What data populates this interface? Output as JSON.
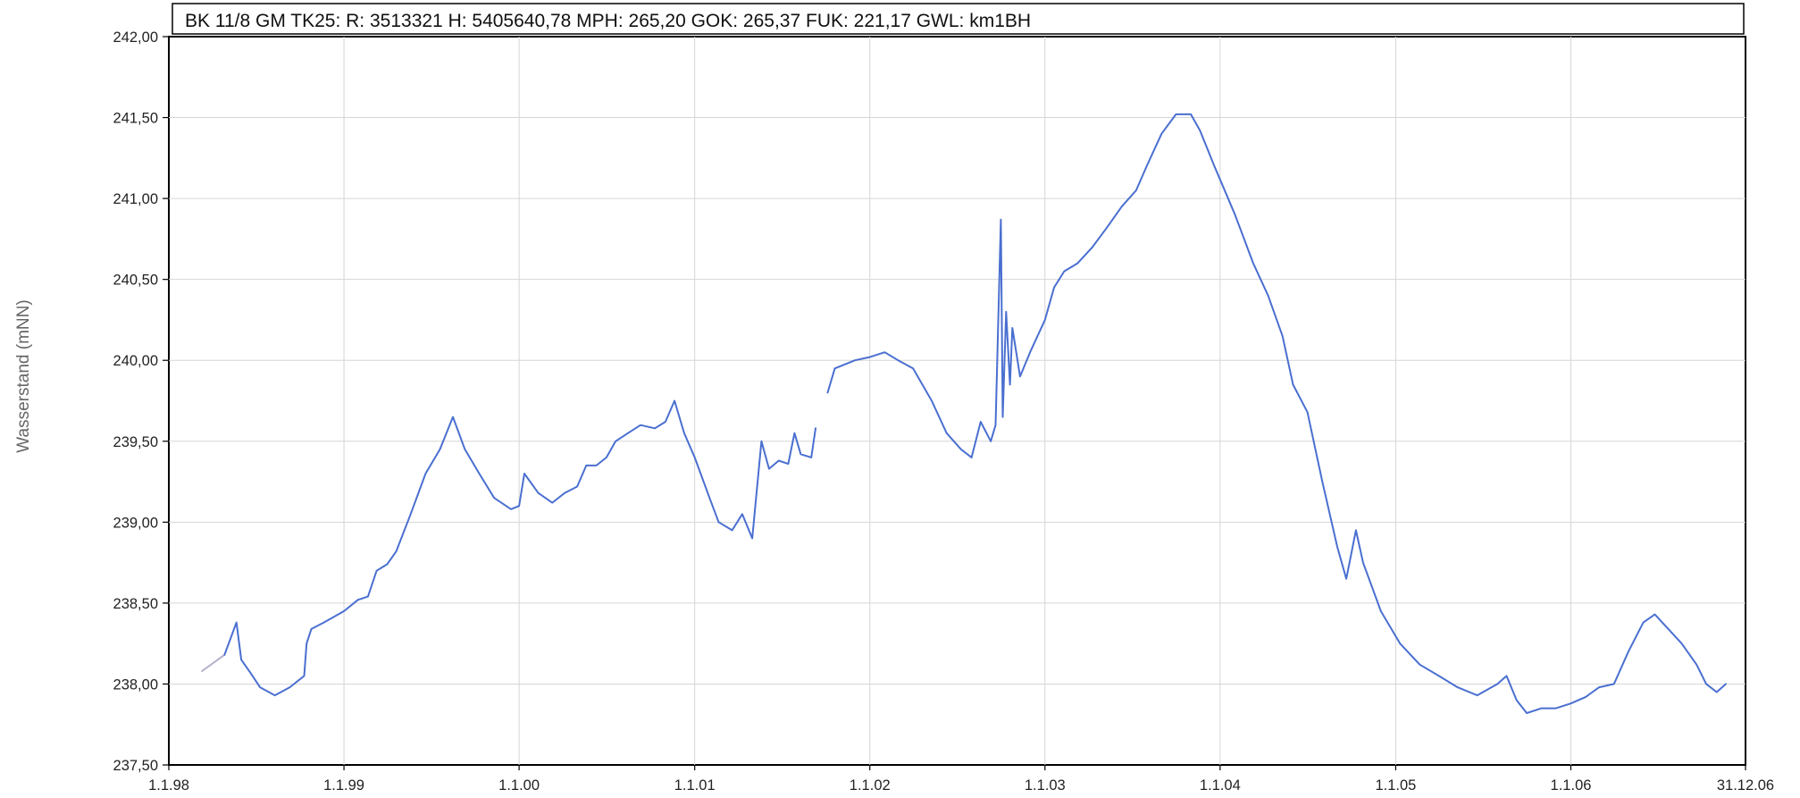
{
  "chart_data": {
    "type": "line",
    "title": "BK 11/8 GM  TK25:   R: 3513321  H: 5405640,78  MPH: 265,20  GOK: 265,37  FUK: 221,17  GWL: km1BH",
    "xlabel": "",
    "ylabel": "Wasserstand (mNN)",
    "x_tick_labels": [
      "1.1.98",
      "1.1.99",
      "1.1.00",
      "1.1.01",
      "1.1.02",
      "1.1.03",
      "1.1.04",
      "1.1.05",
      "1.1.06",
      "31.12.06"
    ],
    "y_tick_labels": [
      "237,50",
      "238,00",
      "238,50",
      "239,00",
      "239,50",
      "240,00",
      "240,50",
      "241,00",
      "241,50",
      "242,00"
    ],
    "xlim": [
      "1998-01-01",
      "2006-12-31"
    ],
    "ylim": [
      237.5,
      242.0
    ],
    "grid": true,
    "legend": "none",
    "colors": {
      "series": "#4a6fd0",
      "start_segment": "#b0b0c8",
      "grid": "#d6d6d6",
      "frame": "#000000"
    },
    "series": [
      {
        "segments": [
          [
            [
              "1998-03-11",
              238.08
            ],
            [
              "1998-04-27",
              238.18
            ]
          ],
          [
            [
              "1998-04-27",
              238.18
            ],
            [
              "1998-05-22",
              238.38
            ],
            [
              "1998-06-01",
              238.15
            ],
            [
              "1998-06-20",
              238.07
            ],
            [
              "1998-07-10",
              237.98
            ],
            [
              "1998-08-10",
              237.93
            ],
            [
              "1998-09-10",
              237.98
            ],
            [
              "1998-10-10",
              238.05
            ],
            [
              "1998-10-15",
              238.25
            ],
            [
              "1998-10-25",
              238.34
            ],
            [
              "1998-11-20",
              238.38
            ],
            [
              "1999-01-01",
              238.45
            ],
            [
              "1999-01-30",
              238.52
            ],
            [
              "1999-02-20",
              238.54
            ],
            [
              "1999-03-10",
              238.7
            ],
            [
              "1999-04-01",
              238.74
            ],
            [
              "1999-04-20",
              238.82
            ],
            [
              "1999-05-20",
              239.05
            ],
            [
              "1999-06-20",
              239.3
            ],
            [
              "1999-07-20",
              239.45
            ],
            [
              "1999-08-16",
              239.65
            ],
            [
              "1999-09-10",
              239.45
            ],
            [
              "1999-10-10",
              239.3
            ],
            [
              "1999-11-10",
              239.15
            ],
            [
              "1999-12-15",
              239.08
            ],
            [
              "2000-01-01",
              239.1
            ],
            [
              "2000-01-12",
              239.3
            ],
            [
              "2000-02-10",
              239.18
            ],
            [
              "2000-03-10",
              239.12
            ],
            [
              "2000-04-05",
              239.18
            ],
            [
              "2000-05-01",
              239.22
            ],
            [
              "2000-05-20",
              239.35
            ],
            [
              "2000-06-10",
              239.35
            ],
            [
              "2000-07-01",
              239.4
            ],
            [
              "2000-07-20",
              239.5
            ],
            [
              "2000-08-15",
              239.55
            ],
            [
              "2000-09-10",
              239.6
            ],
            [
              "2000-10-10",
              239.58
            ],
            [
              "2000-11-01",
              239.62
            ],
            [
              "2000-11-20",
              239.75
            ],
            [
              "2000-12-10",
              239.55
            ],
            [
              "2001-01-01",
              239.4
            ],
            [
              "2001-02-01",
              239.15
            ],
            [
              "2001-02-20",
              239.0
            ],
            [
              "2001-03-20",
              238.95
            ],
            [
              "2001-04-10",
              239.05
            ],
            [
              "2001-05-01",
              238.9
            ],
            [
              "2001-05-20",
              239.5
            ],
            [
              "2001-06-05",
              239.33
            ],
            [
              "2001-06-25",
              239.38
            ],
            [
              "2001-07-15",
              239.36
            ],
            [
              "2001-07-28",
              239.55
            ],
            [
              "2001-08-10",
              239.42
            ],
            [
              "2001-09-01",
              239.4
            ],
            [
              "2001-09-10",
              239.58
            ]
          ],
          [
            [
              "2001-10-05",
              239.8
            ],
            [
              "2001-10-20",
              239.95
            ],
            [
              "2001-12-01",
              240.0
            ],
            [
              "2002-01-01",
              240.02
            ],
            [
              "2002-02-01",
              240.05
            ],
            [
              "2002-03-01",
              240.0
            ],
            [
              "2002-04-01",
              239.95
            ],
            [
              "2002-05-10",
              239.75
            ],
            [
              "2002-06-10",
              239.55
            ],
            [
              "2002-07-10",
              239.45
            ],
            [
              "2002-08-01",
              239.4
            ],
            [
              "2002-08-20",
              239.62
            ],
            [
              "2002-09-10",
              239.5
            ],
            [
              "2002-09-20",
              239.6
            ],
            [
              "2002-10-01",
              240.87
            ],
            [
              "2002-10-05",
              239.65
            ],
            [
              "2002-10-12",
              240.3
            ],
            [
              "2002-10-20",
              239.85
            ],
            [
              "2002-10-25",
              240.2
            ],
            [
              "2002-11-10",
              239.9
            ],
            [
              "2002-12-01",
              240.05
            ],
            [
              "2003-01-01",
              240.25
            ],
            [
              "2003-01-20",
              240.45
            ],
            [
              "2003-02-10",
              240.55
            ],
            [
              "2003-03-10",
              240.6
            ],
            [
              "2003-04-10",
              240.7
            ],
            [
              "2003-05-10",
              240.82
            ],
            [
              "2003-06-10",
              240.95
            ],
            [
              "2003-07-10",
              241.05
            ],
            [
              "2003-08-01",
              241.2
            ],
            [
              "2003-09-01",
              241.4
            ],
            [
              "2003-10-01",
              241.52
            ],
            [
              "2003-11-01",
              241.52
            ],
            [
              "2003-11-20",
              241.42
            ],
            [
              "2003-12-20",
              241.2
            ],
            [
              "2004-02-01",
              240.9
            ],
            [
              "2004-03-10",
              240.6
            ],
            [
              "2004-04-10",
              240.4
            ],
            [
              "2004-05-10",
              240.15
            ],
            [
              "2004-06-01",
              239.85
            ],
            [
              "2004-07-01",
              239.68
            ],
            [
              "2004-08-01",
              239.25
            ],
            [
              "2004-09-01",
              238.85
            ],
            [
              "2004-09-20",
              238.65
            ],
            [
              "2004-10-10",
              238.95
            ],
            [
              "2004-10-25",
              238.75
            ],
            [
              "2004-12-01",
              238.45
            ],
            [
              "2005-01-10",
              238.25
            ],
            [
              "2005-02-20",
              238.12
            ],
            [
              "2005-04-01",
              238.05
            ],
            [
              "2005-05-10",
              237.98
            ],
            [
              "2005-06-20",
              237.93
            ],
            [
              "2005-08-01",
              238.0
            ],
            [
              "2005-08-20",
              238.05
            ],
            [
              "2005-09-10",
              237.9
            ],
            [
              "2005-10-01",
              237.82
            ],
            [
              "2005-11-01",
              237.85
            ],
            [
              "2005-12-01",
              237.85
            ],
            [
              "2006-01-01",
              237.88
            ],
            [
              "2006-02-01",
              237.92
            ],
            [
              "2006-03-01",
              237.98
            ],
            [
              "2006-04-01",
              238.0
            ],
            [
              "2006-05-01",
              238.2
            ],
            [
              "2006-06-01",
              238.38
            ],
            [
              "2006-06-25",
              238.43
            ],
            [
              "2006-07-20",
              238.35
            ],
            [
              "2006-08-20",
              238.25
            ],
            [
              "2006-09-20",
              238.12
            ],
            [
              "2006-10-10",
              238.0
            ],
            [
              "2006-11-01",
              237.95
            ],
            [
              "2006-11-20",
              238.0
            ]
          ]
        ]
      }
    ]
  }
}
